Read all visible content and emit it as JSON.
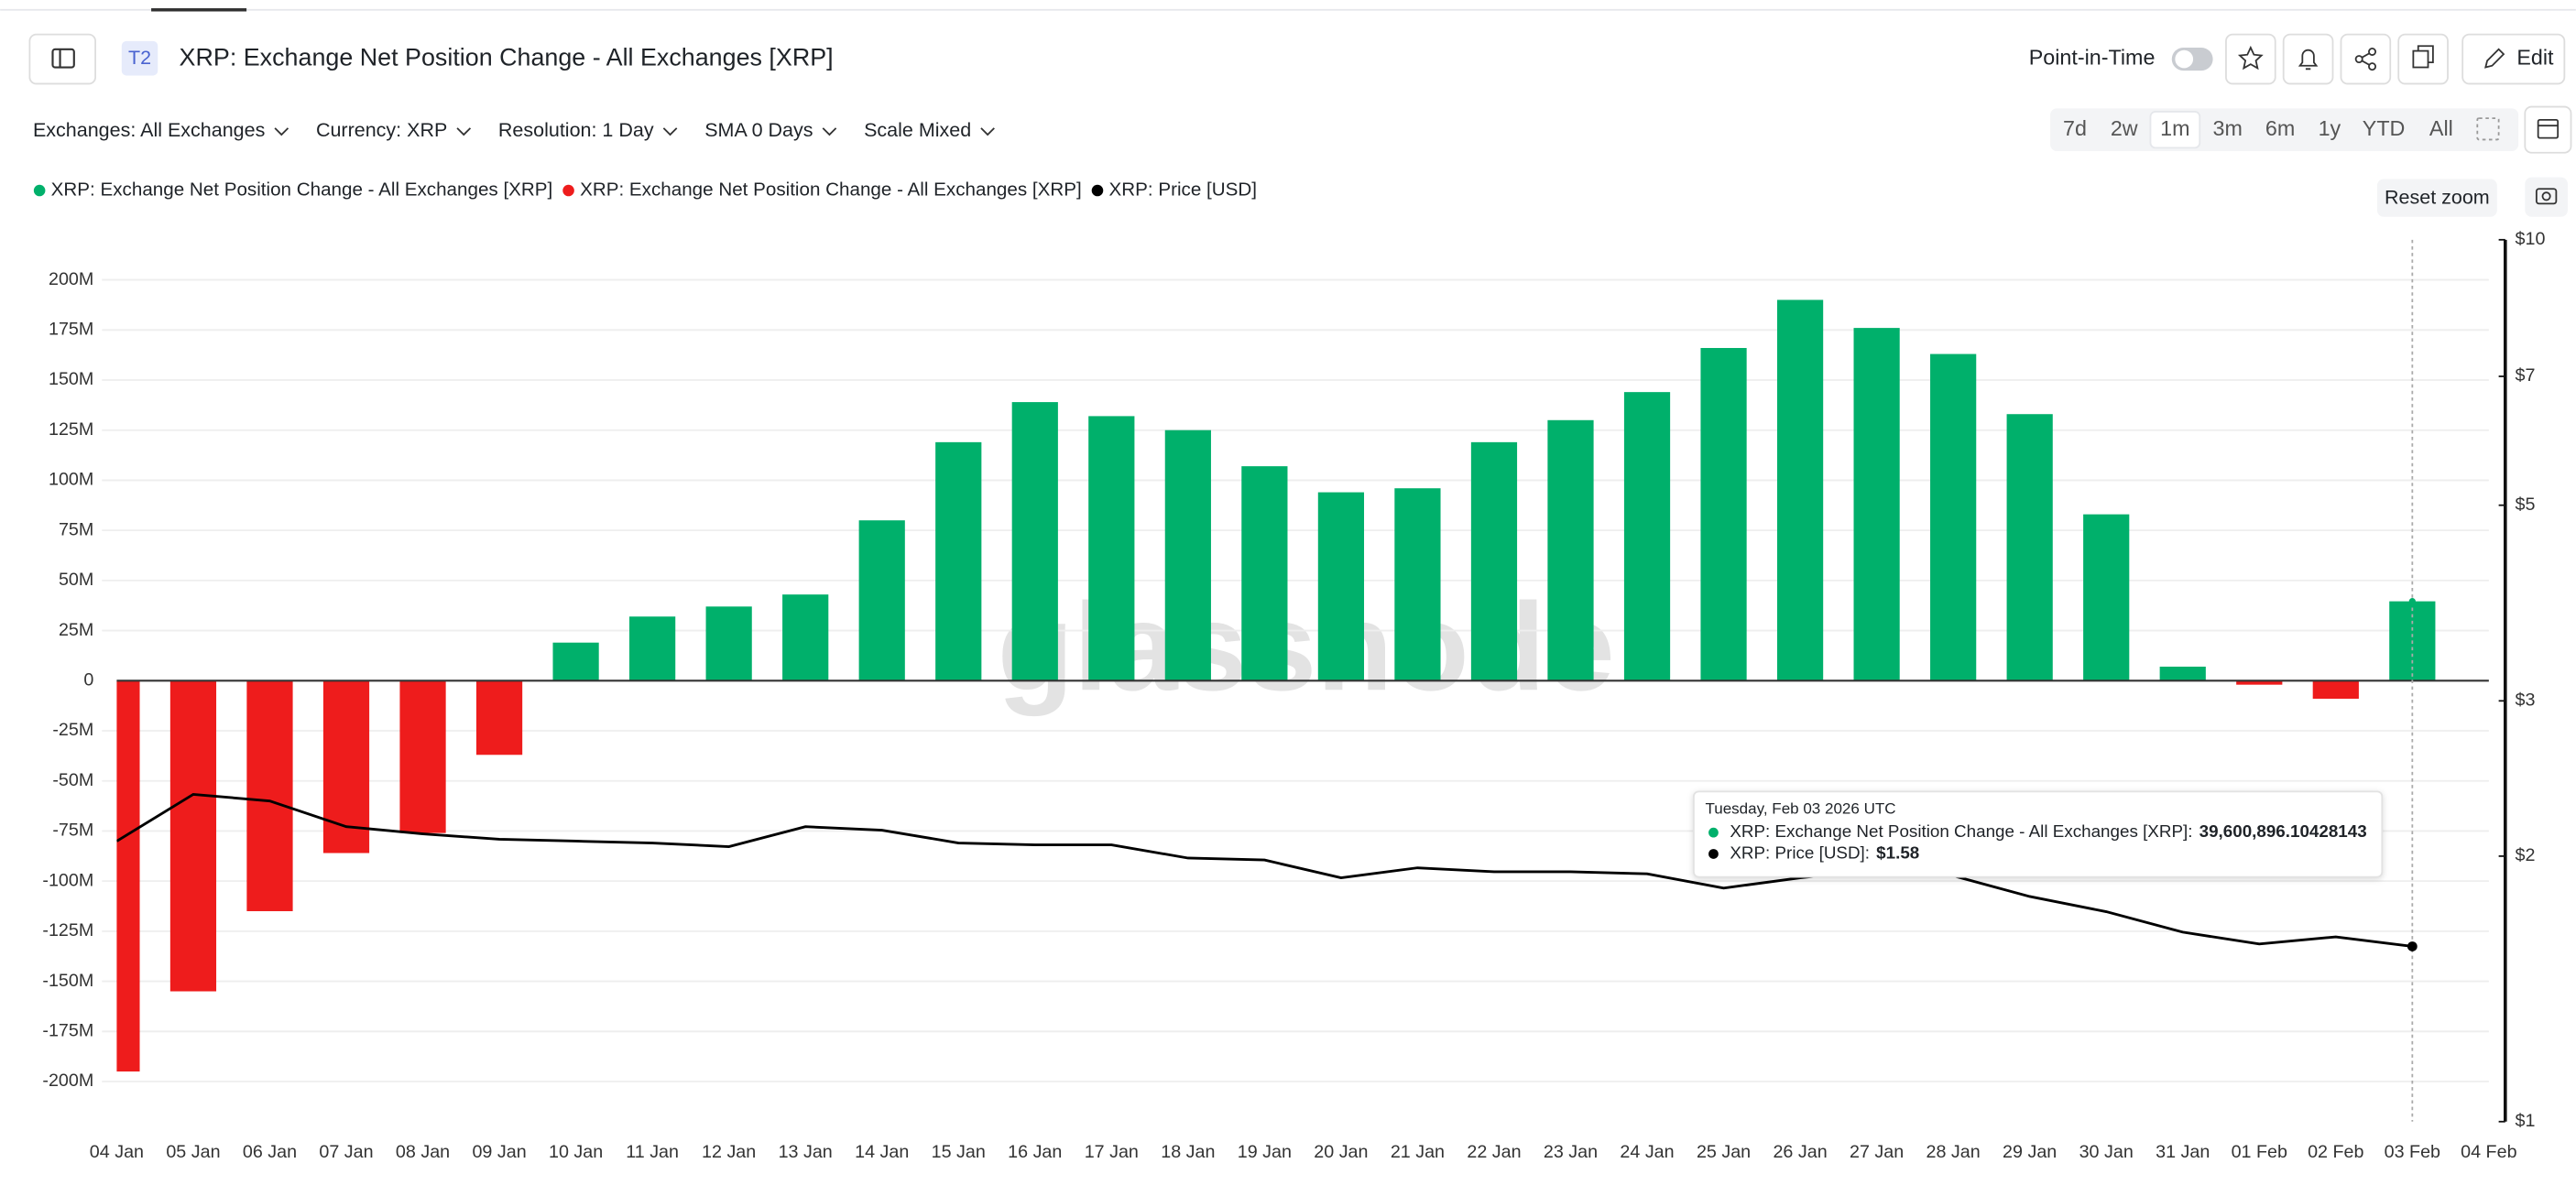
{
  "ui": {
    "badge": "T2",
    "title": "XRP: Exchange Net Position Change - All Exchanges [XRP]",
    "point_in_time": "Point-in-Time",
    "edit": "Edit",
    "filters": [
      "Exchanges: All Exchanges",
      "Currency: XRP",
      "Resolution: 1 Day",
      "SMA 0 Days",
      "Scale Mixed"
    ],
    "ranges": [
      "7d",
      "2w",
      "1m",
      "3m",
      "6m",
      "1y",
      "YTD",
      "All"
    ],
    "selected_range": "1m",
    "reset_zoom": "Reset zoom",
    "watermark": "glassnode"
  },
  "chart_data": {
    "type": "bar",
    "categories": [
      "04 Jan",
      "05 Jan",
      "06 Jan",
      "07 Jan",
      "08 Jan",
      "09 Jan",
      "10 Jan",
      "11 Jan",
      "12 Jan",
      "13 Jan",
      "14 Jan",
      "15 Jan",
      "16 Jan",
      "17 Jan",
      "18 Jan",
      "19 Jan",
      "20 Jan",
      "21 Jan",
      "22 Jan",
      "23 Jan",
      "24 Jan",
      "25 Jan",
      "26 Jan",
      "27 Jan",
      "28 Jan",
      "29 Jan",
      "30 Jan",
      "31 Jan",
      "01 Feb",
      "02 Feb",
      "03 Feb",
      "04 Feb"
    ],
    "series": [
      {
        "name": "XRP: Exchange Net Position Change - All Exchanges [XRP]",
        "color": "#00b06b",
        "type": "bar",
        "values": [
          null,
          null,
          null,
          null,
          null,
          null,
          19000000,
          32000000,
          37000000,
          43000000,
          80000000,
          119000000,
          139000000,
          132000000,
          125000000,
          107000000,
          94000000,
          96000000,
          119000000,
          130000000,
          144000000,
          166000000,
          190000000,
          176000000,
          163000000,
          133000000,
          83000000,
          7000000,
          null,
          null,
          39600896.10428143,
          null
        ]
      },
      {
        "name": "XRP: Exchange Net Position Change - All Exchanges [XRP]",
        "color": "#ee1c1c",
        "type": "bar",
        "values": [
          -195000000,
          -155000000,
          -115000000,
          -86000000,
          -76000000,
          -37000000,
          null,
          null,
          null,
          null,
          null,
          null,
          null,
          null,
          null,
          null,
          null,
          null,
          null,
          null,
          null,
          null,
          null,
          null,
          null,
          null,
          null,
          null,
          -2000000,
          -9000000,
          null,
          null
        ]
      },
      {
        "name": "XRP: Price [USD]",
        "color": "#000000",
        "type": "line",
        "axis": "y2",
        "values": [
          2.08,
          2.35,
          2.31,
          2.16,
          2.12,
          2.09,
          2.08,
          2.07,
          2.05,
          2.16,
          2.14,
          2.07,
          2.06,
          2.06,
          1.99,
          1.98,
          1.89,
          1.94,
          1.92,
          1.92,
          1.91,
          1.84,
          1.89,
          1.93,
          1.9,
          1.8,
          1.73,
          1.64,
          1.59,
          1.62,
          1.58,
          null
        ]
      }
    ],
    "ylim": [
      -220000000,
      220000000
    ],
    "yticks": [
      {
        "value": 200000000,
        "label": "200M"
      },
      {
        "value": 175000000,
        "label": "175M"
      },
      {
        "value": 150000000,
        "label": "150M"
      },
      {
        "value": 125000000,
        "label": "125M"
      },
      {
        "value": 100000000,
        "label": "100M"
      },
      {
        "value": 75000000,
        "label": "75M"
      },
      {
        "value": 50000000,
        "label": "50M"
      },
      {
        "value": 25000000,
        "label": "25M"
      },
      0,
      {
        "value": -25000000,
        "label": "-25M"
      },
      {
        "value": -50000000,
        "label": "-50M"
      },
      {
        "value": -75000000,
        "label": "-75M"
      },
      {
        "value": -100000000,
        "label": "-100M"
      },
      {
        "value": -125000000,
        "label": "-125M"
      },
      {
        "value": -150000000,
        "label": "-150M"
      },
      {
        "value": -175000000,
        "label": "-175M"
      },
      {
        "value": -200000000,
        "label": "-200M"
      }
    ],
    "y2lim": [
      1,
      10
    ],
    "y2scale": "log",
    "y2ticks": [
      {
        "value": 10,
        "label": "$10"
      },
      {
        "value": 7,
        "label": "$7"
      },
      {
        "value": 5,
        "label": "$5"
      },
      {
        "value": 3,
        "label": "$3"
      },
      {
        "value": 2,
        "label": "$2"
      },
      {
        "value": 1,
        "label": "$1"
      }
    ],
    "grid": true,
    "legend": "top-left",
    "tooltip": {
      "title": "Tuesday, Feb 03 2026 UTC",
      "rows": [
        {
          "label": "XRP: Exchange Net Position Change - All Exchanges [XRP]:",
          "value": "39,600,896.10428143"
        },
        {
          "label": "XRP: Price [USD]:",
          "value": "$1.58"
        }
      ]
    }
  }
}
